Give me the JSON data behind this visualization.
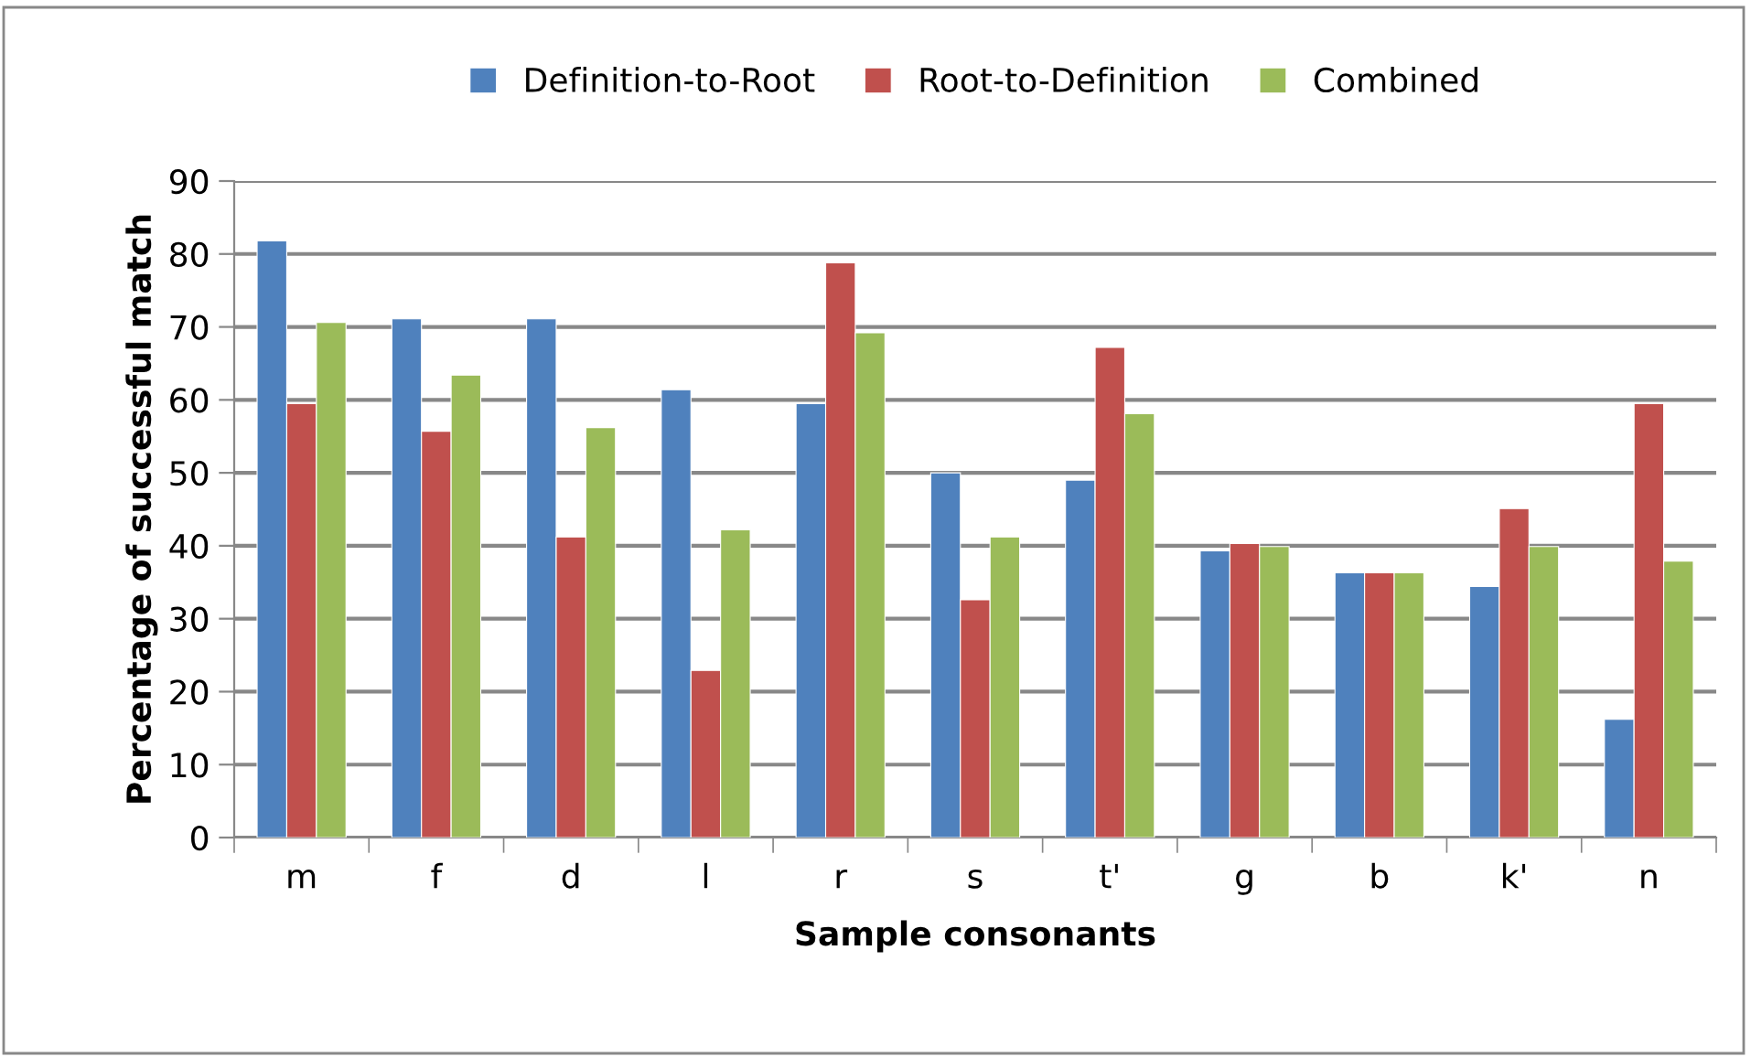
{
  "chart_data": {
    "type": "bar",
    "xlabel": "Sample consonants",
    "ylabel": "Percentage of successful match",
    "categories": [
      "m",
      "f",
      "d",
      "l",
      "r",
      "s",
      "t'",
      "g",
      "b",
      "k'",
      "n"
    ],
    "series": [
      {
        "name": "Definition-to-Root",
        "color": "#4f81bd",
        "values": [
          81.8,
          71.1,
          71.1,
          61.4,
          59.5,
          50.0,
          49.0,
          39.3,
          36.3,
          34.4,
          16.2
        ]
      },
      {
        "name": "Root-to-Definition",
        "color": "#c0504d",
        "values": [
          59.5,
          55.7,
          41.2,
          22.9,
          78.8,
          32.6,
          67.2,
          40.3,
          36.3,
          45.1,
          59.5
        ]
      },
      {
        "name": "Combined",
        "color": "#9bbb59",
        "values": [
          70.6,
          63.4,
          56.2,
          42.2,
          69.2,
          41.2,
          58.1,
          39.9,
          36.3,
          39.9,
          37.9
        ]
      }
    ],
    "ylim": [
      0,
      90
    ],
    "yticks": [
      0,
      10,
      20,
      30,
      40,
      50,
      60,
      70,
      80,
      90
    ],
    "grid": "y",
    "legend": "top"
  }
}
